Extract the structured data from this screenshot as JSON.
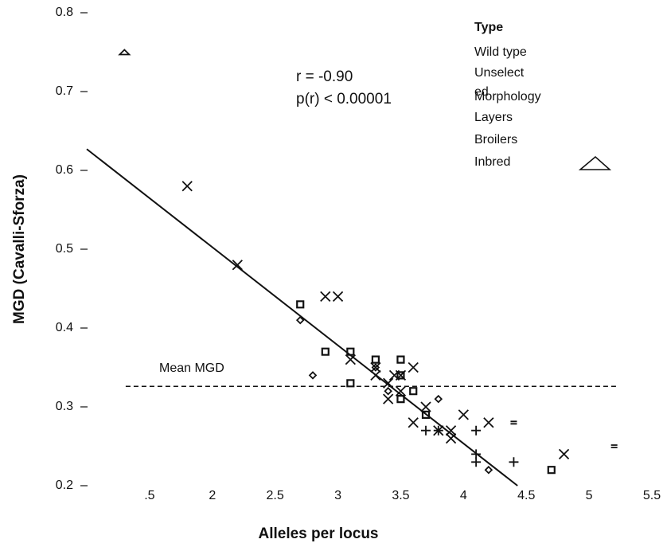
{
  "chart_data": {
    "type": "scatter",
    "xlabel": "Alleles per locus",
    "ylabel": "MGD (Cavalli-Sforza)",
    "annotations": [
      "r = -0.90",
      "p(r) < 0.00001"
    ],
    "legend_title": "Type",
    "xlim": [
      1.0,
      5.5
    ],
    "ylim": [
      0.2,
      0.8
    ],
    "xticks": [
      {
        "value": 1.5,
        "label": ".5"
      },
      2,
      2.5,
      3,
      3.5,
      4,
      4.5,
      5,
      5.5
    ],
    "yticks": [
      0.2,
      0.3,
      0.4,
      0.5,
      0.6,
      0.7,
      0.8
    ],
    "fit_line": {
      "x": [
        1.0,
        4.43
      ],
      "values": [
        0.627,
        0.2
      ]
    },
    "mean_line": {
      "label": "Mean MGD",
      "value": 0.326,
      "x": [
        1.31,
        5.22
      ]
    },
    "series": [
      {
        "name": "Wild type",
        "marker": "dash",
        "color": "#111",
        "x": [
          4.4,
          5.2
        ],
        "values": [
          0.28,
          0.25
        ]
      },
      {
        "name": "Unselected",
        "marker": "square",
        "color": "#111",
        "x": [
          2.7,
          2.9,
          3.1,
          3.1,
          3.3,
          3.5,
          3.5,
          3.5,
          3.6,
          3.7,
          4.7
        ],
        "values": [
          0.43,
          0.37,
          0.37,
          0.33,
          0.36,
          0.36,
          0.34,
          0.31,
          0.32,
          0.29,
          0.22
        ]
      },
      {
        "name": "Morphology",
        "marker": "x",
        "color": "#111",
        "x": [
          1.8,
          2.2,
          2.9,
          3.0,
          3.1,
          3.3,
          3.3,
          3.4,
          3.4,
          3.45,
          3.5,
          3.5,
          3.6,
          3.6,
          3.7,
          3.8,
          3.9,
          3.9,
          4.0,
          4.2,
          4.8
        ],
        "values": [
          0.58,
          0.48,
          0.44,
          0.44,
          0.36,
          0.35,
          0.34,
          0.31,
          0.33,
          0.34,
          0.32,
          0.34,
          0.35,
          0.28,
          0.3,
          0.27,
          0.26,
          0.27,
          0.29,
          0.28,
          0.24
        ]
      },
      {
        "name": "Layers",
        "marker": "diamond",
        "color": "#111",
        "x": [
          2.7,
          2.8,
          3.3,
          3.4,
          3.8,
          4.2
        ],
        "values": [
          0.41,
          0.34,
          0.35,
          0.32,
          0.31,
          0.22
        ]
      },
      {
        "name": "Broilers",
        "marker": "plus",
        "color": "#111",
        "x": [
          3.7,
          3.8,
          4.1,
          4.1,
          4.1,
          4.4
        ],
        "values": [
          0.27,
          0.27,
          0.27,
          0.24,
          0.23,
          0.23
        ]
      },
      {
        "name": "Inbred",
        "marker": "triangle",
        "color": "#111",
        "x": [
          1.3
        ],
        "values": [
          0.75
        ]
      }
    ]
  }
}
